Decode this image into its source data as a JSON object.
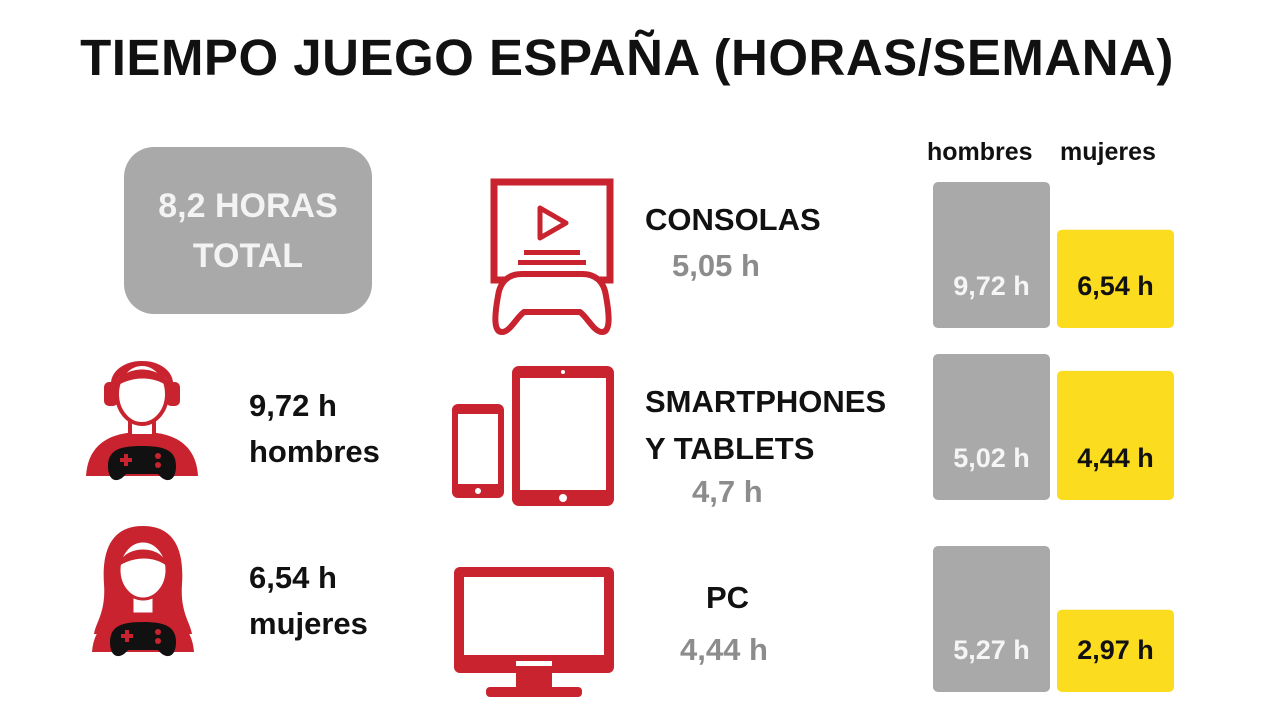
{
  "title": "TIEMPO JUEGO ESPAÑA (HORAS/SEMANA)",
  "total": {
    "line1": "8,2 HORAS",
    "line2": "TOTAL"
  },
  "people": [
    {
      "value": "9,72 h",
      "label": "hombres",
      "icon": "man-gamer-icon"
    },
    {
      "value": "6,54 h",
      "label": "mujeres",
      "icon": "woman-gamer-icon"
    }
  ],
  "platforms": [
    {
      "title_lines": [
        "CONSOLAS"
      ],
      "value": "5,05 h",
      "icon": "console-icon"
    },
    {
      "title_lines": [
        "SMARTPHONES",
        "Y TABLETS"
      ],
      "value": "4,7 h",
      "icon": "smartphone-tablet-icon"
    },
    {
      "title_lines": [
        "PC"
      ],
      "value": "4,44 h",
      "icon": "pc-monitor-icon"
    }
  ],
  "legend": {
    "men": "hombres",
    "women": "mujeres"
  },
  "colors": {
    "accent_red": "#c8232e",
    "gray": "#a9a9a9",
    "yellow": "#fbdc1f"
  },
  "chart_data": {
    "type": "bar",
    "categories": [
      "CONSOLAS",
      "SMARTPHONES Y TABLETS",
      "PC"
    ],
    "series": [
      {
        "name": "hombres",
        "values": [
          9.72,
          5.02,
          5.27
        ],
        "labels": [
          "9,72 h",
          "5,02 h",
          "5,27 h"
        ]
      },
      {
        "name": "mujeres",
        "values": [
          6.54,
          4.44,
          2.97
        ],
        "labels": [
          "6,54 h",
          "4,44 h",
          "2,97 h"
        ]
      }
    ],
    "title": "TIEMPO JUEGO ESPAÑA (HORAS/SEMANA)",
    "xlabel": "",
    "ylabel": ""
  }
}
